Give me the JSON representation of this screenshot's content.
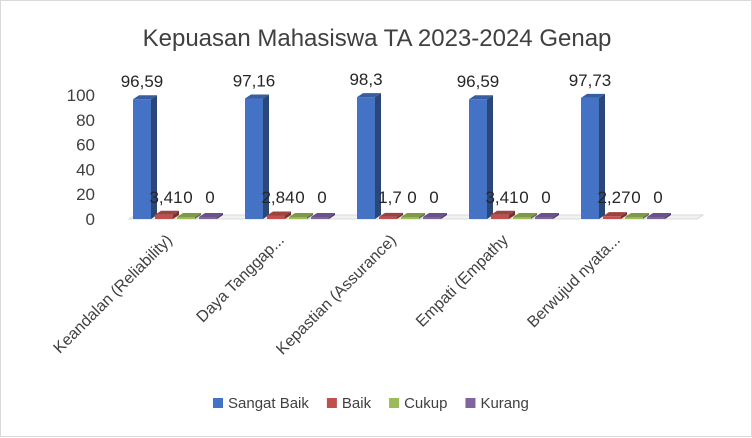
{
  "chart_data": {
    "type": "bar",
    "title": "Kepuasan  Mahasiswa TA 2023-2024 Genap",
    "categories": [
      "Keandalan (Reliability)",
      "Daya Tanggap...",
      "Kepastian (Assurance)",
      "Empati (Empathy",
      "Berwujud nyata..."
    ],
    "series": [
      {
        "name": "Sangat Baik",
        "color": "#4472C4",
        "values": [
          96.59,
          97.16,
          98.3,
          96.59,
          97.73
        ],
        "labels": [
          "96,59",
          "97,16",
          "98,3",
          "96,59",
          "97,73"
        ]
      },
      {
        "name": "Baik",
        "color": "#C0504D",
        "values": [
          3.41,
          2.84,
          1.7,
          3.41,
          2.27
        ],
        "labels": [
          "3,41",
          "2,84",
          "1,7",
          "3,41",
          "2,27"
        ]
      },
      {
        "name": "Cukup",
        "color": "#9BBB59",
        "values": [
          0,
          0,
          0,
          0,
          0
        ],
        "labels": [
          "0",
          "0",
          "0",
          "0",
          "0"
        ]
      },
      {
        "name": "Kurang",
        "color": "#8064A2",
        "values": [
          0,
          0,
          0,
          0,
          0
        ],
        "labels": [
          "0",
          "0",
          "0",
          "0",
          "0"
        ]
      }
    ],
    "yticks": [
      "0",
      "20",
      "40",
      "60",
      "80",
      "100"
    ],
    "ylim": [
      0,
      100
    ],
    "xlabel": "",
    "ylabel": "",
    "grid": false,
    "legend_position": "bottom",
    "style": "3d-clustered-column"
  }
}
